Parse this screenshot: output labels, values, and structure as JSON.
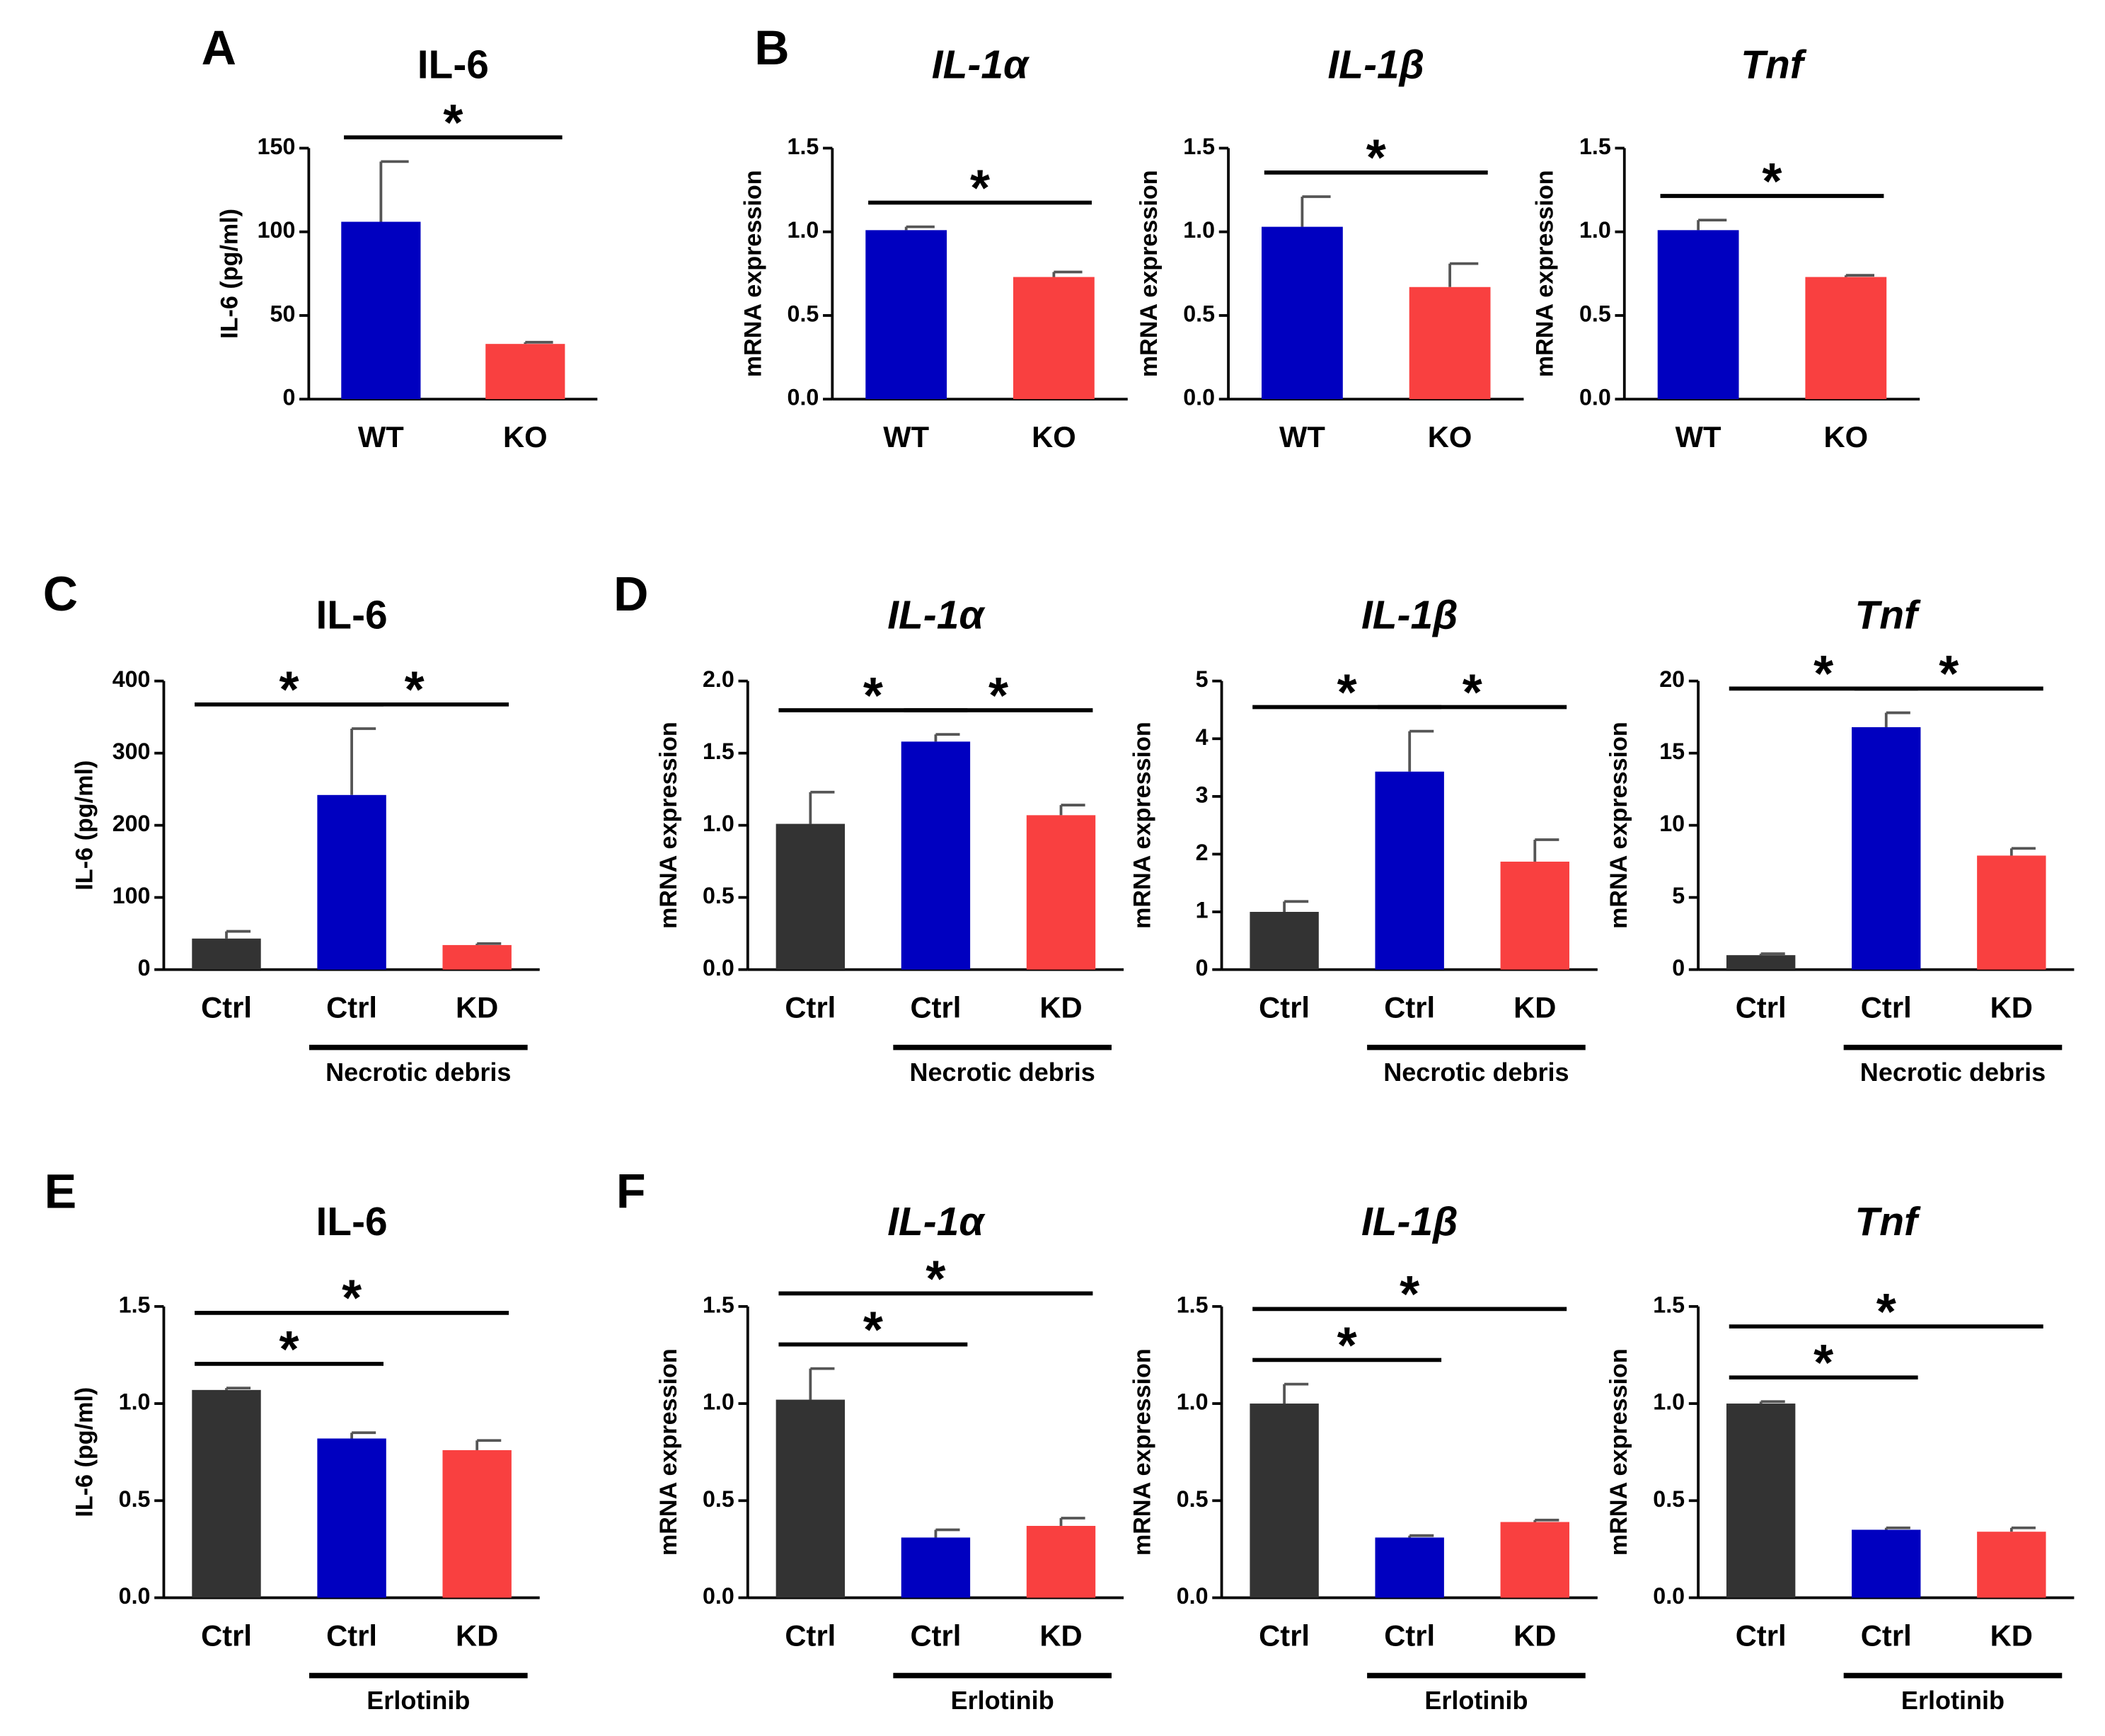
{
  "chart_data": [
    {
      "type": "bar",
      "panel": "A",
      "title": "IL-6",
      "ylabel": "IL-6 (pg/ml)",
      "categories": [
        "WT",
        "KO"
      ],
      "values": [
        106,
        33
      ],
      "errors": [
        36,
        1
      ],
      "colors": [
        "#0000c0",
        "#f94040"
      ],
      "ylim": [
        0,
        150
      ],
      "yticks": [
        0,
        50,
        100,
        150
      ],
      "significance": [
        {
          "label": "*",
          "between": [
            0,
            1
          ]
        }
      ]
    },
    {
      "type": "bar",
      "panel": "B",
      "title": "IL-1α",
      "title_italic": true,
      "ylabel": "mRNA expression",
      "categories": [
        "WT",
        "KO"
      ],
      "values": [
        1.01,
        0.73
      ],
      "errors": [
        0.02,
        0.03
      ],
      "colors": [
        "#0000c0",
        "#f94040"
      ],
      "ylim": [
        0,
        1.5
      ],
      "yticks": [
        {
          "value": 0,
          "label": "0.0"
        },
        0.5,
        {
          "value": 1,
          "label": "1.0"
        },
        1.5
      ],
      "significance": [
        {
          "label": "*",
          "between": [
            0,
            1
          ]
        }
      ]
    },
    {
      "type": "bar",
      "title": "IL-1β",
      "title_italic": true,
      "ylabel": "mRNA expression",
      "categories": [
        "WT",
        "KO"
      ],
      "values": [
        1.03,
        0.67
      ],
      "errors": [
        0.18,
        0.14
      ],
      "colors": [
        "#0000c0",
        "#f94040"
      ],
      "ylim": [
        0,
        1.5
      ],
      "yticks": [
        {
          "value": 0,
          "label": "0.0"
        },
        0.5,
        {
          "value": 1,
          "label": "1.0"
        },
        1.5
      ],
      "significance": [
        {
          "label": "*",
          "between": [
            0,
            1
          ]
        }
      ]
    },
    {
      "type": "bar",
      "title": "Tnf",
      "title_italic": true,
      "ylabel": "mRNA expression",
      "categories": [
        "WT",
        "KO"
      ],
      "values": [
        1.01,
        0.73
      ],
      "errors": [
        0.06,
        0.01
      ],
      "colors": [
        "#0000c0",
        "#f94040"
      ],
      "ylim": [
        0,
        1.5
      ],
      "yticks": [
        {
          "value": 0,
          "label": "0.0"
        },
        0.5,
        {
          "value": 1,
          "label": "1.0"
        },
        1.5
      ],
      "significance": [
        {
          "label": "*",
          "between": [
            0,
            1
          ]
        }
      ]
    },
    {
      "type": "bar",
      "panel": "C",
      "title": "IL-6",
      "ylabel": "IL-6 (pg/ml)",
      "categories": [
        "Ctrl",
        "Ctrl",
        "KD"
      ],
      "values": [
        43,
        242,
        34
      ],
      "errors": [
        10,
        92,
        2
      ],
      "colors": [
        "#333333",
        "#0000c0",
        "#f94040"
      ],
      "ylim": [
        0,
        400
      ],
      "yticks": [
        0,
        100,
        200,
        300,
        400
      ],
      "significance": [
        {
          "label": "*",
          "between": [
            0,
            1
          ]
        },
        {
          "label": "*",
          "between": [
            1,
            2
          ]
        }
      ],
      "group": {
        "label": "Necrotic debris",
        "categories": [
          1,
          2
        ]
      }
    },
    {
      "type": "bar",
      "panel": "D",
      "title": "IL-1α",
      "title_italic": true,
      "ylabel": "mRNA expression",
      "categories": [
        "Ctrl",
        "Ctrl",
        "KD"
      ],
      "values": [
        1.01,
        1.58,
        1.07
      ],
      "errors": [
        0.22,
        0.05,
        0.07
      ],
      "colors": [
        "#333333",
        "#0000c0",
        "#f94040"
      ],
      "ylim": [
        0,
        2
      ],
      "yticks": [
        {
          "value": 0,
          "label": "0.0"
        },
        0.5,
        {
          "value": 1,
          "label": "1.0"
        },
        1.5,
        {
          "value": 2,
          "label": "2.0"
        }
      ],
      "significance": [
        {
          "label": "*",
          "between": [
            0,
            1
          ]
        },
        {
          "label": "*",
          "between": [
            1,
            2
          ]
        }
      ],
      "group": {
        "label": "Necrotic debris",
        "categories": [
          1,
          2
        ]
      }
    },
    {
      "type": "bar",
      "title": "IL-1β",
      "title_italic": true,
      "ylabel": "mRNA expression",
      "categories": [
        "Ctrl",
        "Ctrl",
        "KD"
      ],
      "values": [
        1.0,
        3.43,
        1.87
      ],
      "errors": [
        0.18,
        0.7,
        0.38
      ],
      "colors": [
        "#333333",
        "#0000c0",
        "#f94040"
      ],
      "ylim": [
        0,
        5
      ],
      "yticks": [
        0,
        1,
        2,
        3,
        4,
        5
      ],
      "significance": [
        {
          "label": "*",
          "between": [
            0,
            1
          ]
        },
        {
          "label": "*",
          "between": [
            1,
            2
          ]
        }
      ],
      "group": {
        "label": "Necrotic debris",
        "categories": [
          1,
          2
        ]
      }
    },
    {
      "type": "bar",
      "title": "Tnf",
      "title_italic": true,
      "ylabel": "mRNA expression",
      "categories": [
        "Ctrl",
        "Ctrl",
        "KD"
      ],
      "values": [
        1.0,
        16.8,
        7.9
      ],
      "errors": [
        0.1,
        1.0,
        0.5
      ],
      "colors": [
        "#333333",
        "#0000c0",
        "#f94040"
      ],
      "ylim": [
        0,
        20
      ],
      "yticks": [
        0,
        5,
        10,
        15,
        20
      ],
      "significance": [
        {
          "label": "*",
          "between": [
            0,
            1
          ]
        },
        {
          "label": "*",
          "between": [
            1,
            2
          ]
        }
      ],
      "group": {
        "label": "Necrotic debris",
        "categories": [
          1,
          2
        ]
      }
    },
    {
      "type": "bar",
      "panel": "E",
      "title": "IL-6",
      "ylabel": "IL-6 (pg/ml)",
      "categories": [
        "Ctrl",
        "Ctrl",
        "KD"
      ],
      "values": [
        1.07,
        0.82,
        0.76
      ],
      "errors": [
        0.01,
        0.03,
        0.05
      ],
      "colors": [
        "#333333",
        "#0000c0",
        "#f94040"
      ],
      "ylim": [
        0,
        1.5
      ],
      "yticks": [
        {
          "value": 0,
          "label": "0.0"
        },
        0.5,
        {
          "value": 1,
          "label": "1.0"
        },
        1.5
      ],
      "significance": [
        {
          "label": "*",
          "between": [
            0,
            1
          ]
        },
        {
          "label": "*",
          "between": [
            0,
            2
          ]
        }
      ],
      "group": {
        "label": "Erlotinib",
        "categories": [
          1,
          2
        ]
      }
    },
    {
      "type": "bar",
      "panel": "F",
      "title": "IL-1α",
      "title_italic": true,
      "ylabel": "mRNA expression",
      "categories": [
        "Ctrl",
        "Ctrl",
        "KD"
      ],
      "values": [
        1.02,
        0.31,
        0.37
      ],
      "errors": [
        0.16,
        0.04,
        0.04
      ],
      "colors": [
        "#333333",
        "#0000c0",
        "#f94040"
      ],
      "ylim": [
        0,
        1.5
      ],
      "yticks": [
        {
          "value": 0,
          "label": "0.0"
        },
        0.5,
        {
          "value": 1,
          "label": "1.0"
        },
        1.5
      ],
      "significance": [
        {
          "label": "*",
          "between": [
            0,
            1
          ]
        },
        {
          "label": "*",
          "between": [
            0,
            2
          ]
        }
      ],
      "group": {
        "label": "Erlotinib",
        "categories": [
          1,
          2
        ]
      }
    },
    {
      "type": "bar",
      "title": "IL-1β",
      "title_italic": true,
      "ylabel": "mRNA expression",
      "categories": [
        "Ctrl",
        "Ctrl",
        "KD"
      ],
      "values": [
        1.0,
        0.31,
        0.39
      ],
      "errors": [
        0.1,
        0.01,
        0.01
      ],
      "colors": [
        "#333333",
        "#0000c0",
        "#f94040"
      ],
      "ylim": [
        0,
        1.5
      ],
      "yticks": [
        {
          "value": 0,
          "label": "0.0"
        },
        0.5,
        {
          "value": 1,
          "label": "1.0"
        },
        1.5
      ],
      "significance": [
        {
          "label": "*",
          "between": [
            0,
            1
          ]
        },
        {
          "label": "*",
          "between": [
            0,
            2
          ]
        }
      ],
      "group": {
        "label": "Erlotinib",
        "categories": [
          1,
          2
        ]
      }
    },
    {
      "type": "bar",
      "title": "Tnf",
      "title_italic": true,
      "ylabel": "mRNA expression",
      "categories": [
        "Ctrl",
        "Ctrl",
        "KD"
      ],
      "values": [
        1.0,
        0.35,
        0.34
      ],
      "errors": [
        0.01,
        0.01,
        0.02
      ],
      "colors": [
        "#333333",
        "#0000c0",
        "#f94040"
      ],
      "ylim": [
        0,
        1.5
      ],
      "yticks": [
        {
          "value": 0,
          "label": "0.0"
        },
        0.5,
        {
          "value": 1,
          "label": "1.0"
        },
        1.5
      ],
      "significance": [
        {
          "label": "*",
          "between": [
            0,
            1
          ]
        },
        {
          "label": "*",
          "between": [
            0,
            2
          ]
        }
      ],
      "group": {
        "label": "Erlotinib",
        "categories": [
          1,
          2
        ]
      }
    }
  ]
}
